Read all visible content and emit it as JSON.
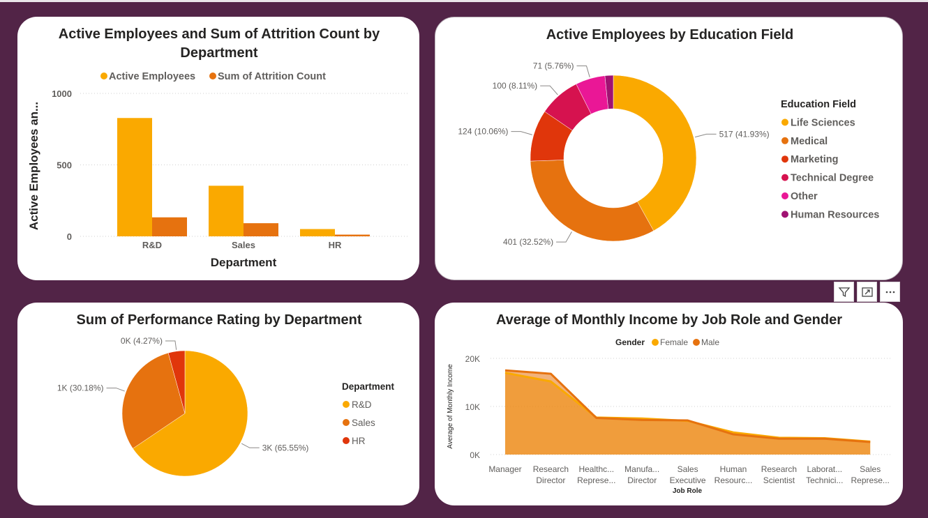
{
  "colors": {
    "active": "#FAA900",
    "attrition": "#E6720F",
    "grid": "#cfcfcf",
    "edu": [
      "#FAA900",
      "#E6720F",
      "#E0360B",
      "#D6124F",
      "#EA1796",
      "#A01272"
    ],
    "dept": [
      "#FAA900",
      "#E6720F",
      "#E0360B"
    ],
    "female": "#FAA900",
    "male": "#E6720F"
  },
  "toolbar": {
    "filter_icon": "filter-icon",
    "focus_icon": "focus-mode-icon",
    "more_icon": "more-options-icon"
  },
  "chart_data": [
    {
      "type": "bar",
      "title": "Active Employees and Sum of Attrition Count by Department",
      "title_lines": [
        "Active Employees and Sum of Attrition Count by",
        "Department"
      ],
      "xlabel": "Department",
      "ylabel": "Active Employees an...",
      "categories": [
        "R&D",
        "Sales",
        "HR"
      ],
      "series": [
        {
          "name": "Active Employees",
          "values": [
            828,
            354,
            51
          ]
        },
        {
          "name": "Sum of Attrition Count",
          "values": [
            133,
            92,
            12
          ]
        }
      ],
      "ylim": [
        0,
        1000
      ],
      "yticks": [
        0,
        500,
        1000
      ],
      "ytick_labels": [
        "0",
        "500",
        "1000"
      ],
      "legend": "top",
      "grid": true
    },
    {
      "type": "pie",
      "donut": true,
      "title": "Active Employees by Education Field",
      "legend_title": "Education Field",
      "legend": "right",
      "labels": [
        "Life Sciences",
        "Medical",
        "Marketing",
        "Technical Degree",
        "Other",
        "Human Resources"
      ],
      "values": [
        517,
        401,
        124,
        100,
        71,
        20
      ],
      "data_labels": [
        "517 (41.93%)",
        "401 (32.52%)",
        "124 (10.06%)",
        "100 (8.11%)",
        "71 (5.76%)",
        ""
      ]
    },
    {
      "type": "pie",
      "title": "Sum of Performance Rating by Department",
      "legend_title": "Department",
      "legend": "right",
      "labels": [
        "R&D",
        "Sales",
        "HR"
      ],
      "values": [
        65.55,
        30.18,
        4.27
      ],
      "data_labels": [
        "3K (65.55%)",
        "1K (30.18%)",
        "0K (4.27%)"
      ]
    },
    {
      "type": "area",
      "title": "Average of Monthly Income by Job Role and Gender",
      "legend_title": "Gender",
      "legend": "top",
      "xlabel": "Job Role",
      "ylabel": "Average of Monthly Income",
      "categories": [
        [
          "Manager"
        ],
        [
          "Research",
          "Director"
        ],
        [
          "Healthc...",
          "Represe..."
        ],
        [
          "Manufa...",
          "Director"
        ],
        [
          "Sales",
          "Executive"
        ],
        [
          "Human",
          "Resourc..."
        ],
        [
          "Research",
          "Scientist"
        ],
        [
          "Laborat...",
          "Technici..."
        ],
        [
          "Sales",
          "Represe..."
        ]
      ],
      "series": [
        {
          "name": "Female",
          "values": [
            17000,
            15200,
            7700,
            7500,
            7000,
            4600,
            3500,
            3400,
            2700
          ]
        },
        {
          "name": "Male",
          "values": [
            17500,
            16800,
            7600,
            7200,
            7100,
            4200,
            3300,
            3300,
            2600
          ]
        }
      ],
      "ylim": [
        0,
        20000
      ],
      "yticks": [
        0,
        10000,
        20000
      ],
      "ytick_labels": [
        "0K",
        "10K",
        "20K"
      ],
      "grid": true
    }
  ]
}
